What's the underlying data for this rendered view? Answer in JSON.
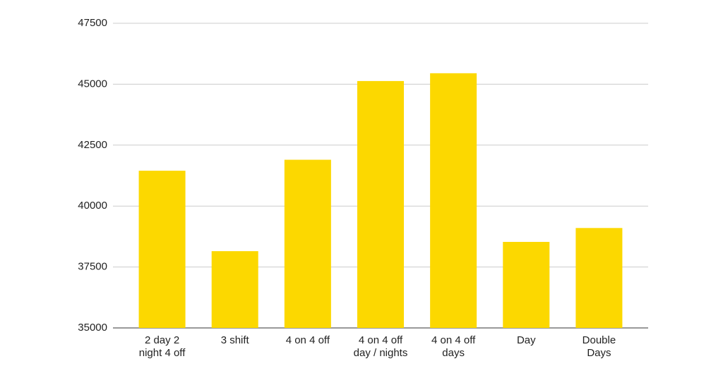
{
  "chart_data": {
    "type": "bar",
    "categories": [
      "2 day 2\nnight 4 off",
      "3 shift",
      "4 on 4 off",
      "4 on 4 off\nday / nights",
      "4 on 4 off\ndays",
      "Day",
      "Double\nDays"
    ],
    "values": [
      41450,
      38150,
      41900,
      45130,
      45450,
      38530,
      39100
    ],
    "color": "#fcd800",
    "ylim": [
      35000,
      47500
    ],
    "yticks": [
      35000,
      37500,
      40000,
      42500,
      45000,
      47500
    ],
    "grid": true
  }
}
